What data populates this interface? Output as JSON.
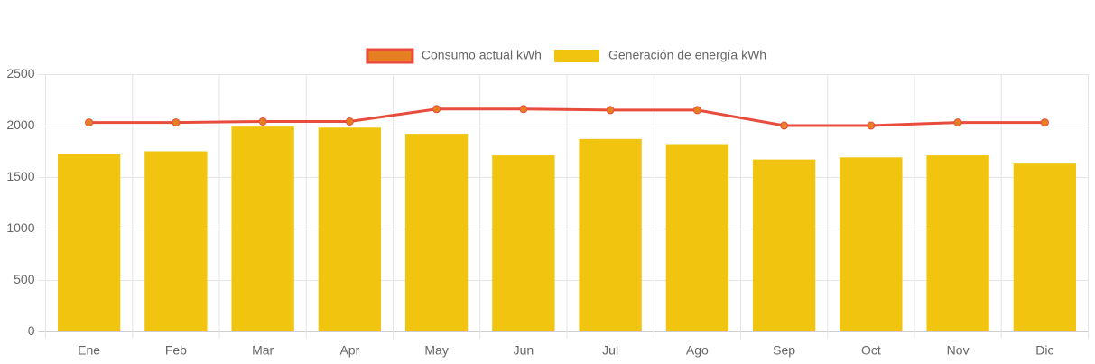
{
  "chart_data": {
    "type": "bar",
    "categories": [
      "Ene",
      "Feb",
      "Mar",
      "Apr",
      "May",
      "Jun",
      "Jul",
      "Ago",
      "Sep",
      "Oct",
      "Nov",
      "Dic"
    ],
    "series": [
      {
        "name": "Consumo actual kWh",
        "type": "line",
        "color": "#e74c3c",
        "point_color": "#e67e22",
        "values": [
          2030,
          2030,
          2040,
          2040,
          2160,
          2160,
          2150,
          2150,
          2000,
          2000,
          2030,
          2030
        ]
      },
      {
        "name": "Generación de energía kWh",
        "type": "bar",
        "color": "#f1c40f",
        "values": [
          1720,
          1750,
          1990,
          1980,
          1920,
          1710,
          1870,
          1820,
          1670,
          1690,
          1710,
          1630
        ]
      }
    ],
    "ylim": [
      0,
      2500
    ],
    "yticks": [
      0,
      500,
      1000,
      1500,
      2000,
      2500
    ],
    "grid": true,
    "legend": "top"
  }
}
